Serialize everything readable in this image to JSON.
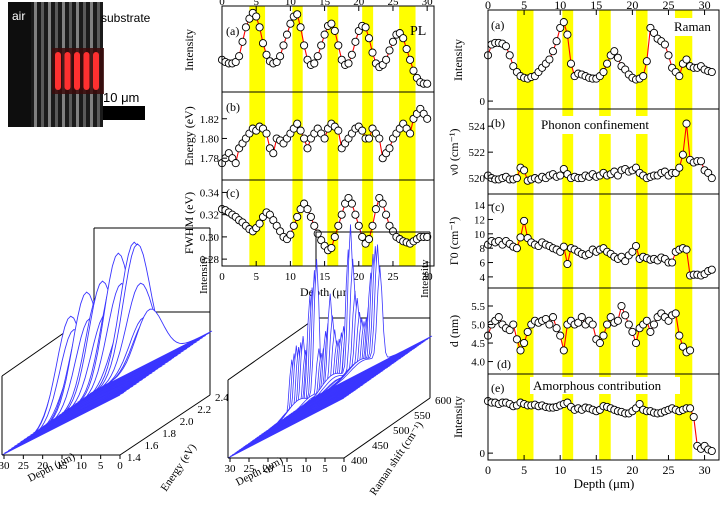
{
  "micrograph": {
    "label_air": "air",
    "label_substrate": "substrate",
    "scale_bar": "10 μm",
    "stripe_color": "#ff3030"
  },
  "colors": {
    "yellow": "#ffff00",
    "red_line": "#ff0000",
    "surface_blue": "#3a35ff"
  },
  "yellow_bands": [
    [
      4,
      6.3
    ],
    [
      10.3,
      11.8
    ],
    [
      15.4,
      17.0
    ],
    [
      20.5,
      22.1
    ],
    [
      25.9,
      28.3
    ]
  ],
  "pl_panel": {
    "corner_label": "PL",
    "xlabel": "Depth (μm)",
    "x_ticks": [
      "0",
      "5",
      "10",
      "15",
      "20",
      "25",
      "30"
    ],
    "sub_a": {
      "tag": "(a)",
      "ylabel": "Intensity"
    },
    "sub_b": {
      "tag": "(b)",
      "ylabel": "Energy (eV)",
      "y_ticks": [
        "1.82",
        "1.80",
        "1.78"
      ]
    },
    "sub_c": {
      "tag": "(c)",
      "ylabel": "FWHM (eV)",
      "y_ticks": [
        "0.34",
        "0.32",
        "0.30",
        "0.28"
      ]
    }
  },
  "raman_panel": {
    "corner_label": "Raman",
    "xlabel": "Depth (μm)",
    "x_ticks": [
      "0",
      "5",
      "10",
      "15",
      "20",
      "25",
      "30"
    ],
    "sub_a": {
      "tag": "(a)",
      "ylabel": "Intensity",
      "y_ticks": [
        "0"
      ]
    },
    "sub_b": {
      "tag": "(b)",
      "ylabel": "ν0 (cm⁻¹)",
      "note": "Phonon confinement",
      "y_ticks": [
        "524",
        "522",
        "520"
      ]
    },
    "sub_c": {
      "tag": "(c)",
      "ylabel": "Γ0 (cm⁻¹)",
      "y_ticks": [
        "14",
        "12",
        "10",
        "8",
        "6",
        "4"
      ]
    },
    "sub_d": {
      "tag": "(d)",
      "ylabel": "d (nm)",
      "y_ticks": [
        "5.5",
        "5.0",
        "4.5",
        "4.0"
      ]
    },
    "sub_e": {
      "tag": "(e)",
      "ylabel": "Intensity",
      "note": "Amorphous contribution",
      "y_ticks": [
        "0"
      ]
    }
  },
  "waterfall_pl": {
    "depth_label": "Depth (μm)",
    "energy_label": "Energy (eV)",
    "intensity_label": "Intensity",
    "depth_ticks": [
      "30",
      "25",
      "20",
      "15",
      "10",
      "5",
      "0"
    ],
    "energy_ticks": [
      "1.4",
      "1.6",
      "1.8",
      "2.0",
      "2.2",
      "2.4"
    ]
  },
  "waterfall_raman": {
    "depth_label": "Depth (μm)",
    "shift_label": "Raman shift (cm⁻¹)",
    "intensity_label": "Intensity",
    "depth_ticks": [
      "30",
      "25",
      "20",
      "15",
      "10",
      "5",
      "0"
    ],
    "shift_ticks": [
      "400",
      "450",
      "500",
      "550",
      "600"
    ]
  },
  "chart_data": [
    {
      "type": "scatter",
      "title": "PL (a)",
      "xlabel": "Depth (μm)",
      "ylabel": "Intensity",
      "xlim": [
        0,
        31
      ],
      "x": [
        0,
        0.5,
        1,
        1.5,
        2,
        2.5,
        3,
        3.5,
        4,
        4.5,
        5,
        5.5,
        6,
        6.5,
        7,
        7.5,
        8,
        8.5,
        9,
        9.5,
        10,
        10.5,
        11,
        11.5,
        12,
        12.5,
        13,
        13.5,
        14,
        14.5,
        15,
        15.5,
        16,
        16.5,
        17,
        17.5,
        18,
        18.5,
        19,
        19.5,
        20,
        20.5,
        21,
        21.5,
        22,
        22.5,
        23,
        23.5,
        24,
        24.5,
        25,
        25.5,
        26,
        26.5,
        27,
        27.5,
        28,
        28.5,
        29,
        29.5,
        30
      ],
      "values": [
        0.35,
        0.32,
        0.3,
        0.3,
        0.32,
        0.4,
        0.6,
        0.8,
        0.92,
        1.0,
        0.95,
        0.8,
        0.58,
        0.42,
        0.33,
        0.3,
        0.32,
        0.4,
        0.55,
        0.7,
        0.85,
        0.95,
        0.98,
        0.8,
        0.55,
        0.35,
        0.28,
        0.3,
        0.4,
        0.55,
        0.7,
        0.82,
        0.85,
        0.75,
        0.55,
        0.35,
        0.28,
        0.3,
        0.42,
        0.6,
        0.75,
        0.82,
        0.8,
        0.65,
        0.45,
        0.3,
        0.25,
        0.28,
        0.35,
        0.48,
        0.6,
        0.7,
        0.72,
        0.65,
        0.5,
        0.35,
        0.2,
        0.1,
        0.04,
        0.02,
        0.02
      ]
    },
    {
      "type": "scatter",
      "title": "PL (b)",
      "xlabel": "Depth (μm)",
      "ylabel": "Energy (eV)",
      "xlim": [
        0,
        31
      ],
      "ylim": [
        1.765,
        1.84
      ],
      "x": [
        0,
        0.5,
        1,
        1.5,
        2,
        2.5,
        3,
        3.5,
        4,
        4.5,
        5,
        5.5,
        6,
        6.5,
        7,
        7.5,
        8,
        8.5,
        9,
        9.5,
        10,
        10.5,
        11,
        11.5,
        12,
        12.5,
        13,
        13.5,
        14,
        14.5,
        15,
        15.5,
        16,
        16.5,
        17,
        17.5,
        18,
        18.5,
        19,
        19.5,
        20,
        20.5,
        21,
        21.5,
        22,
        22.5,
        23,
        23.5,
        24,
        24.5,
        25,
        25.5,
        26,
        26.5,
        27,
        27.5,
        28,
        28.5,
        29,
        29.5,
        30
      ],
      "values": [
        1.775,
        1.78,
        1.785,
        1.78,
        1.775,
        1.79,
        1.795,
        1.8,
        1.805,
        1.81,
        1.808,
        1.812,
        1.81,
        1.805,
        1.79,
        1.785,
        1.8,
        1.798,
        1.795,
        1.8,
        1.805,
        1.81,
        1.815,
        1.808,
        1.8,
        1.79,
        1.8,
        1.805,
        1.81,
        1.805,
        1.8,
        1.81,
        1.815,
        1.812,
        1.808,
        1.79,
        1.795,
        1.8,
        1.805,
        1.81,
        1.812,
        1.808,
        1.8,
        1.8,
        1.81,
        1.805,
        1.8,
        1.78,
        1.785,
        1.79,
        1.8,
        1.805,
        1.81,
        1.815,
        1.81,
        1.805,
        1.82,
        1.825,
        1.83,
        1.825,
        1.82
      ]
    },
    {
      "type": "scatter",
      "title": "PL (c)",
      "xlabel": "Depth (μm)",
      "ylabel": "FWHM (eV)",
      "xlim": [
        0,
        31
      ],
      "ylim": [
        0.28,
        0.345
      ],
      "x": [
        0,
        0.5,
        1,
        1.5,
        2,
        2.5,
        3,
        3.5,
        4,
        4.5,
        5,
        5.5,
        6,
        6.5,
        7,
        7.5,
        8,
        8.5,
        9,
        9.5,
        10,
        10.5,
        11,
        11.5,
        12,
        12.5,
        13,
        13.5,
        14,
        14.5,
        15,
        15.5,
        16,
        16.5,
        17,
        17.5,
        18,
        18.5,
        19,
        19.5,
        20,
        20.5,
        21,
        21.5,
        22,
        22.5,
        23,
        23.5,
        24,
        24.5,
        25,
        25.5,
        26,
        26.5,
        27,
        27.5,
        28,
        28.5,
        29,
        29.5,
        30
      ],
      "values": [
        0.325,
        0.324,
        0.322,
        0.32,
        0.318,
        0.315,
        0.313,
        0.31,
        0.307,
        0.305,
        0.308,
        0.312,
        0.318,
        0.322,
        0.32,
        0.315,
        0.31,
        0.305,
        0.3,
        0.298,
        0.302,
        0.31,
        0.318,
        0.325,
        0.33,
        0.325,
        0.318,
        0.31,
        0.303,
        0.297,
        0.292,
        0.288,
        0.29,
        0.3,
        0.31,
        0.32,
        0.33,
        0.335,
        0.33,
        0.32,
        0.31,
        0.3,
        0.294,
        0.298,
        0.31,
        0.325,
        0.335,
        0.33,
        0.32,
        0.31,
        0.305,
        0.3,
        0.298,
        0.296,
        0.295,
        0.294,
        0.296,
        0.298,
        0.3,
        0.3,
        0.3
      ]
    },
    {
      "type": "scatter",
      "title": "Raman (a)",
      "xlabel": "Depth (μm)",
      "ylabel": "Intensity",
      "xlim": [
        0,
        32
      ],
      "x": [
        0,
        0.5,
        1,
        1.5,
        2,
        2.5,
        3,
        3.5,
        4,
        4.5,
        5,
        5.5,
        6,
        6.5,
        7,
        7.5,
        8,
        8.5,
        9,
        9.5,
        10,
        10.5,
        11,
        11.5,
        12,
        12.5,
        13,
        13.5,
        14,
        14.5,
        15,
        15.5,
        16,
        16.5,
        17,
        17.5,
        18,
        18.5,
        19,
        19.5,
        20,
        20.5,
        21,
        21.5,
        22,
        22.5,
        23,
        23.5,
        24,
        24.5,
        25,
        25.5,
        26,
        26.5,
        27,
        27.5,
        28,
        28.5,
        29,
        29.5,
        30,
        30.5,
        31
      ],
      "values": [
        0.55,
        0.68,
        0.7,
        0.7,
        0.69,
        0.66,
        0.55,
        0.42,
        0.35,
        0.3,
        0.28,
        0.27,
        0.29,
        0.3,
        0.35,
        0.4,
        0.45,
        0.5,
        0.6,
        0.72,
        0.88,
        0.95,
        0.8,
        0.45,
        0.3,
        0.33,
        0.32,
        0.3,
        0.28,
        0.27,
        0.27,
        0.3,
        0.35,
        0.45,
        0.55,
        0.6,
        0.52,
        0.42,
        0.38,
        0.32,
        0.28,
        0.26,
        0.27,
        0.3,
        0.48,
        0.88,
        0.82,
        0.75,
        0.72,
        0.68,
        0.55,
        0.4,
        0.35,
        0.3,
        0.45,
        0.5,
        0.42,
        0.4,
        0.4,
        0.42,
        0.38,
        0.36,
        0.35
      ]
    },
    {
      "type": "scatter",
      "title": "Raman (b)",
      "xlabel": "Depth (μm)",
      "ylabel": "ν0 (cm⁻¹)",
      "xlim": [
        0,
        32
      ],
      "ylim": [
        519.3,
        524.8
      ],
      "x": [
        0,
        0.5,
        1,
        1.5,
        2,
        2.5,
        3,
        3.5,
        4,
        4.5,
        5,
        5.5,
        6,
        6.5,
        7,
        7.5,
        8,
        8.5,
        9,
        9.5,
        10,
        10.5,
        11,
        11.5,
        12,
        12.5,
        13,
        13.5,
        14,
        14.5,
        15,
        15.5,
        16,
        16.5,
        17,
        17.5,
        18,
        18.5,
        19,
        19.5,
        20,
        20.5,
        21,
        21.5,
        22,
        22.5,
        23,
        23.5,
        24,
        24.5,
        25,
        25.5,
        26,
        26.5,
        27,
        27.5,
        28,
        28.5,
        29,
        29.5,
        30,
        30.5,
        31
      ],
      "values": [
        520.2,
        520.0,
        519.9,
        519.9,
        520.0,
        520.1,
        519.9,
        519.9,
        520.0,
        520.8,
        520.6,
        519.8,
        519.9,
        520.0,
        519.9,
        520.1,
        520.0,
        520.2,
        520.3,
        520.1,
        520.2,
        520.7,
        520.3,
        520.0,
        520.1,
        520.0,
        520.0,
        520.2,
        520.1,
        520.3,
        520.1,
        520.2,
        520.4,
        520.2,
        520.3,
        520.5,
        520.2,
        520.6,
        520.7,
        520.5,
        520.6,
        520.8,
        520.4,
        520.2,
        520.0,
        520.1,
        520.2,
        520.2,
        520.4,
        520.5,
        520.2,
        520.4,
        520.4,
        520.8,
        521.8,
        524.2,
        521.4,
        521.2,
        521.3,
        521.3,
        520.6,
        520.4,
        520.0
      ]
    },
    {
      "type": "scatter",
      "title": "Raman (c)",
      "xlabel": "Depth (μm)",
      "ylabel": "Γ0 (cm⁻¹)",
      "xlim": [
        0,
        32
      ],
      "ylim": [
        3.5,
        14.5
      ],
      "x": [
        0,
        0.5,
        1,
        1.5,
        2,
        2.5,
        3,
        3.5,
        4,
        4.5,
        5,
        5.5,
        6,
        6.5,
        7,
        7.5,
        8,
        8.5,
        9,
        9.5,
        10,
        10.5,
        11,
        11.5,
        12,
        12.5,
        13,
        13.5,
        14,
        14.5,
        15,
        15.5,
        16,
        16.5,
        17,
        17.5,
        18,
        18.5,
        19,
        19.5,
        20,
        20.5,
        21,
        21.5,
        22,
        22.5,
        23,
        23.5,
        24,
        24.5,
        25,
        25.5,
        26,
        26.5,
        27,
        27.5,
        28,
        28.5,
        29,
        29.5,
        30,
        30.5,
        31
      ],
      "values": [
        8.5,
        9,
        8.8,
        9,
        8.5,
        9,
        8.6,
        8.2,
        8.0,
        9.5,
        11.8,
        9.4,
        8.8,
        8.5,
        8.3,
        8.8,
        8.5,
        8.3,
        8.0,
        7.8,
        7.5,
        8.2,
        5.8,
        8.0,
        7.8,
        7.5,
        7.2,
        7.0,
        7.2,
        7.8,
        7.5,
        7.8,
        8.0,
        7.5,
        7.2,
        6.8,
        6.5,
        6.8,
        6.2,
        7.0,
        7.5,
        8.3,
        6.5,
        6.8,
        6.6,
        6.4,
        6.5,
        6.3,
        6.7,
        6.5,
        6.0,
        6.0,
        7.5,
        7.8,
        8.0,
        7.8,
        4.2,
        4.3,
        4.3,
        4.2,
        4.4,
        4.8,
        5.0
      ]
    },
    {
      "type": "scatter",
      "title": "Raman (d)",
      "xlabel": "Depth (μm)",
      "ylabel": "d (nm)",
      "xlim": [
        0,
        32
      ],
      "ylim": [
        3.85,
        5.8
      ],
      "x": [
        0,
        0.5,
        1,
        1.5,
        2,
        2.5,
        3,
        3.5,
        4,
        4.5,
        5,
        5.5,
        6,
        6.5,
        7,
        7.5,
        8,
        8.5,
        9,
        9.5,
        10,
        10.5,
        11,
        11.5,
        12,
        12.5,
        13,
        13.5,
        14,
        14.5,
        15,
        15.5,
        16,
        16.5,
        17,
        17.5,
        18,
        18.5,
        19,
        19.5,
        20,
        20.5,
        21,
        21.5,
        22,
        22.5,
        23,
        23.5,
        24,
        24.5,
        25,
        25.5,
        26,
        26.5,
        27,
        27.5,
        28
      ],
      "values": [
        4.7,
        5.0,
        5.1,
        5.2,
        5.0,
        4.9,
        4.85,
        5.0,
        4.6,
        4.3,
        4.5,
        4.8,
        5.0,
        5.1,
        5.05,
        5.1,
        5.15,
        5.0,
        5.2,
        4.9,
        4.7,
        4.3,
        5.0,
        5.1,
        5.0,
        5.05,
        5.2,
        5.0,
        5.1,
        5.0,
        4.6,
        4.5,
        4.7,
        5.0,
        5.2,
        5.05,
        5.1,
        5.5,
        5.25,
        5.0,
        4.8,
        4.5,
        4.9,
        5.0,
        5.1,
        4.8,
        5.0,
        5.2,
        5.3,
        5.2,
        5.1,
        5.25,
        5.3,
        4.7,
        4.4,
        4.25,
        4.3
      ]
    },
    {
      "type": "scatter",
      "title": "Raman (e)",
      "xlabel": "Depth (μm)",
      "ylabel": "Intensity",
      "xlim": [
        0,
        32
      ],
      "x": [
        0,
        0.5,
        1,
        1.5,
        2,
        2.5,
        3,
        3.5,
        4,
        4.5,
        5,
        5.5,
        6,
        6.5,
        7,
        7.5,
        8,
        8.5,
        9,
        9.5,
        10,
        10.5,
        11,
        11.5,
        12,
        12.5,
        13,
        13.5,
        14,
        14.5,
        15,
        15.5,
        16,
        16.5,
        17,
        17.5,
        18,
        18.5,
        19,
        19.5,
        20,
        20.5,
        21,
        21.5,
        22,
        22.5,
        23,
        23.5,
        24,
        24.5,
        25,
        25.5,
        26,
        26.5,
        27,
        27.5,
        28,
        28.5,
        29,
        29.5,
        30,
        30.5,
        31
      ],
      "values": [
        0.72,
        0.7,
        0.7,
        0.68,
        0.7,
        0.7,
        0.68,
        0.65,
        0.66,
        0.7,
        0.68,
        0.66,
        0.66,
        0.67,
        0.65,
        0.66,
        0.64,
        0.63,
        0.63,
        0.64,
        0.66,
        0.68,
        0.7,
        0.64,
        0.6,
        0.62,
        0.6,
        0.63,
        0.62,
        0.6,
        0.58,
        0.6,
        0.65,
        0.64,
        0.62,
        0.6,
        0.58,
        0.57,
        0.55,
        0.55,
        0.58,
        0.62,
        0.68,
        0.6,
        0.58,
        0.58,
        0.56,
        0.55,
        0.56,
        0.58,
        0.6,
        0.62,
        0.6,
        0.58,
        0.6,
        0.62,
        0.62,
        0.5,
        0.1,
        0.06,
        0.1,
        0.05,
        0.03
      ]
    }
  ]
}
